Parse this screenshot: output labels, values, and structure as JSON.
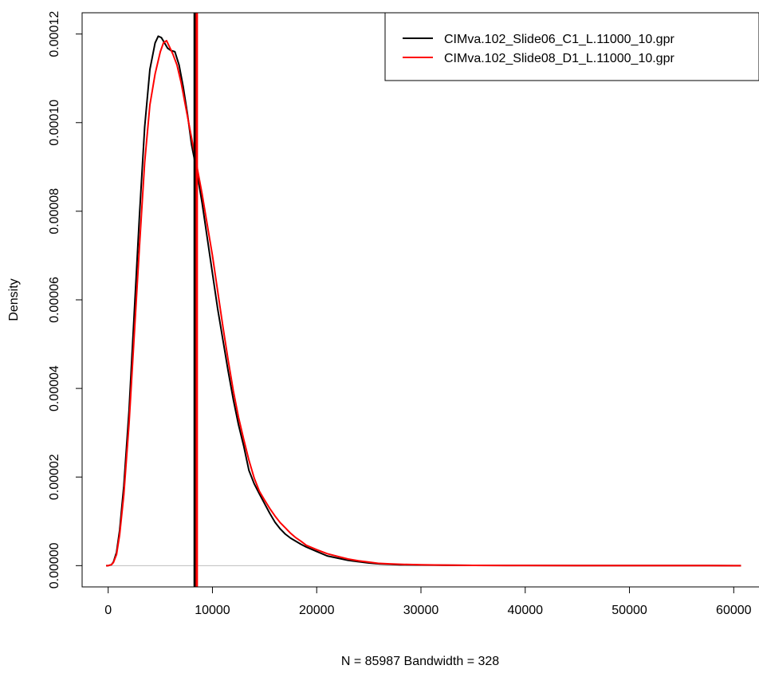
{
  "chart_data": {
    "type": "line",
    "title": "",
    "xlabel": "N = 85987   Bandwidth = 328",
    "ylabel": "Density",
    "xlim": [
      -2500,
      62500
    ],
    "ylim": [
      -4.8e-06,
      0.0001248
    ],
    "x_ticks": [
      0,
      10000,
      20000,
      30000,
      40000,
      50000,
      60000
    ],
    "x_tick_labels": [
      "0",
      "10000",
      "20000",
      "30000",
      "40000",
      "50000",
      "60000"
    ],
    "y_ticks": [
      0,
      2e-05,
      4e-05,
      6e-05,
      8e-05,
      0.0001,
      0.00012
    ],
    "y_tick_labels": [
      "0.00000",
      "0.00002",
      "0.00004",
      "0.00006",
      "0.00008",
      "0.00010",
      "0.00012"
    ],
    "grid": false,
    "legend_position": "top-right",
    "zero_line_color": "#bebebe",
    "series": [
      {
        "name": "CIMva.102_Slide06_C1_L.11000_10.gpr",
        "color": "#000000",
        "median_line_x": 8300,
        "x": [
          -200,
          0,
          300,
          500,
          800,
          1100,
          1500,
          2000,
          2500,
          3000,
          3500,
          4000,
          4500,
          4800,
          5100,
          5400,
          5700,
          6000,
          6400,
          6800,
          7200,
          7600,
          8000,
          8500,
          9000,
          9500,
          10000,
          10500,
          11000,
          11500,
          12000,
          12500,
          13000,
          13500,
          14000,
          14500,
          15000,
          15500,
          16000,
          16500,
          17000,
          17500,
          18000,
          18500,
          19000,
          20000,
          21000,
          22000,
          23000,
          24000,
          25000,
          26000,
          27000,
          28000,
          30000,
          32000,
          35000,
          40000,
          45000,
          50000,
          55000,
          60000,
          60700
        ],
        "y": [
          0,
          0,
          2e-07,
          8e-07,
          3e-06,
          8e-06,
          1.8e-05,
          3.5e-05,
          5.7e-05,
          7.9e-05,
          9.9e-05,
          0.000112,
          0.000118,
          0.0001195,
          0.0001192,
          0.000118,
          0.0001168,
          0.0001163,
          0.000116,
          0.000113,
          0.000108,
          0.000102,
          9.5e-05,
          8.9e-05,
          8.2e-05,
          7.4e-05,
          6.6e-05,
          5.8e-05,
          5.1e-05,
          4.4e-05,
          3.75e-05,
          3.18e-05,
          2.7e-05,
          2.15e-05,
          1.85e-05,
          1.62e-05,
          1.4e-05,
          1.18e-05,
          9.8e-06,
          8.3e-06,
          7.1e-06,
          6.2e-06,
          5.5e-06,
          4.8e-06,
          4.2e-06,
          3.2e-06,
          2.2e-06,
          1.7e-06,
          1.2e-06,
          9e-07,
          6e-07,
          4e-07,
          3e-07,
          2e-07,
          1.5e-07,
          1e-07,
          5e-08,
          3e-08,
          2e-08,
          1e-08,
          1e-08,
          0.0,
          0.0
        ]
      },
      {
        "name": "CIMva.102_Slide08_D1_L.11000_10.gpr",
        "color": "#ff0000",
        "median_line_x": 8500,
        "x": [
          -200,
          0,
          300,
          500,
          800,
          1100,
          1500,
          2000,
          2500,
          3000,
          3500,
          4000,
          4500,
          5000,
          5300,
          5600,
          5900,
          6200,
          6600,
          7000,
          7400,
          7800,
          8200,
          8600,
          9000,
          9500,
          10000,
          10500,
          11000,
          11500,
          12000,
          12500,
          13000,
          13500,
          14000,
          14500,
          15000,
          15500,
          16000,
          16500,
          17000,
          17500,
          18000,
          18500,
          19000,
          20000,
          21000,
          22000,
          23000,
          24000,
          25000,
          26000,
          27000,
          28000,
          30000,
          32000,
          35000,
          40000,
          45000,
          50000,
          55000,
          60000,
          60700
        ],
        "y": [
          0,
          0,
          2e-07,
          7e-07,
          2.5e-06,
          7e-06,
          1.6e-05,
          3.2e-05,
          5.2e-05,
          7.2e-05,
          9.1e-05,
          0.000104,
          0.000111,
          0.000116,
          0.000118,
          0.0001185,
          0.000117,
          0.0001155,
          0.000113,
          0.000109,
          0.000104,
          9.9e-05,
          9.4e-05,
          8.9e-05,
          8.4e-05,
          7.7e-05,
          7e-05,
          6.2e-05,
          5.4e-05,
          4.65e-05,
          3.95e-05,
          3.35e-05,
          2.85e-05,
          2.38e-05,
          1.98e-05,
          1.68e-05,
          1.48e-05,
          1.29e-05,
          1.12e-05,
          9.7e-06,
          8.5e-06,
          7.3e-06,
          6.3e-06,
          5.5e-06,
          4.6e-06,
          3.6e-06,
          2.7e-06,
          2.1e-06,
          1.5e-06,
          1.1e-06,
          8e-07,
          5e-07,
          4e-07,
          3e-07,
          2e-07,
          1.2e-07,
          6e-08,
          3e-08,
          2e-08,
          1e-08,
          1e-08,
          0.0,
          0.0
        ]
      }
    ]
  }
}
